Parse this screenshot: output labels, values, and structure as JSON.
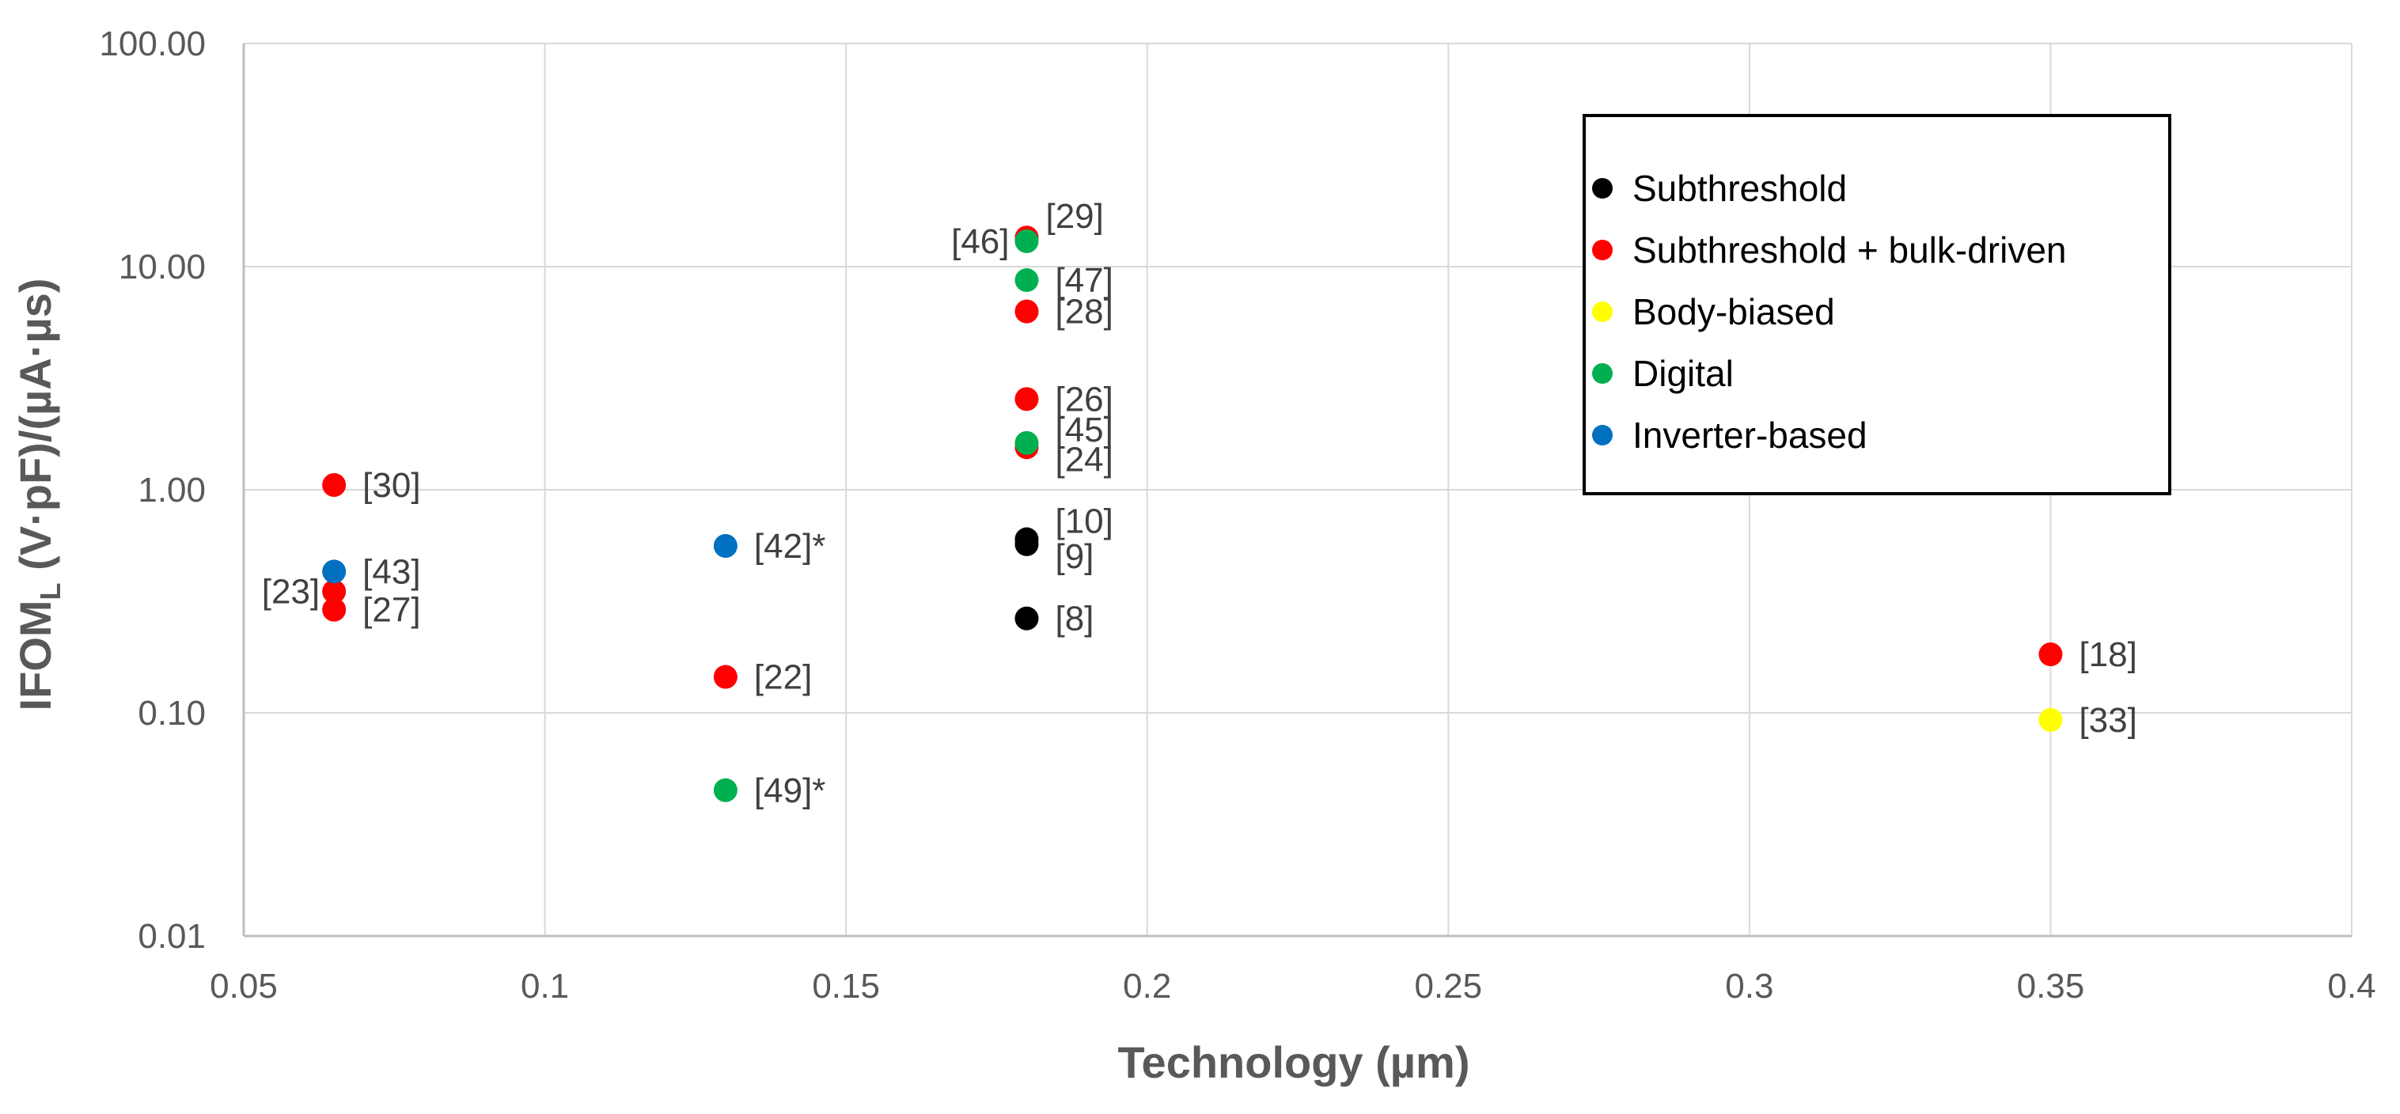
{
  "chart_data": {
    "type": "scatter",
    "xlabel": "Technology (µm)",
    "ylabel_main": "IFOM",
    "ylabel_sub": "L",
    "ylabel_rest": " (V·pF)/(µA·µs)",
    "x_scale": "linear",
    "y_scale": "log",
    "xlim": [
      0.05,
      0.4
    ],
    "ylim": [
      0.01,
      100
    ],
    "x_ticks": [
      0.05,
      0.1,
      0.15,
      0.2,
      0.25,
      0.3,
      0.35,
      0.4
    ],
    "x_tick_labels": [
      "0.05",
      "0.1",
      "0.15",
      "0.2",
      "0.25",
      "0.3",
      "0.35",
      "0.4"
    ],
    "y_ticks": [
      0.01,
      0.1,
      1,
      10,
      100
    ],
    "y_tick_labels": [
      "0.01",
      "0.10",
      "1.00",
      "10.00",
      "100.00"
    ],
    "grid": true,
    "legend_position": "top-right",
    "colors": {
      "Subthreshold": "#000000",
      "Subthreshold + bulk-driven": "#ff0000",
      "Body-biased": "#ffff00",
      "Digital": "#00b050",
      "Inverter-based": "#0070c0",
      "grid": "#d9d9d9",
      "axis": "#bfbfbf"
    },
    "legend": [
      "Subthreshold",
      "Subthreshold + bulk-driven",
      "Body-biased",
      "Digital",
      "Inverter-based"
    ],
    "series": [
      {
        "name": "Subthreshold",
        "points": [
          {
            "x": 0.18,
            "y": 0.6,
            "label": "[10]"
          },
          {
            "x": 0.18,
            "y": 0.57,
            "label": "[9]"
          },
          {
            "x": 0.18,
            "y": 0.265,
            "label": "[8]"
          }
        ]
      },
      {
        "name": "Subthreshold + bulk-driven",
        "points": [
          {
            "x": 0.065,
            "y": 1.05,
            "label": "[30]"
          },
          {
            "x": 0.065,
            "y": 0.35,
            "label": "[23]"
          },
          {
            "x": 0.065,
            "y": 0.29,
            "label": "[27]"
          },
          {
            "x": 0.13,
            "y": 0.145,
            "label": "[22]"
          },
          {
            "x": 0.18,
            "y": 13.5,
            "label": "[29]"
          },
          {
            "x": 0.18,
            "y": 6.3,
            "label": "[28]"
          },
          {
            "x": 0.18,
            "y": 2.55,
            "label": "[26]"
          },
          {
            "x": 0.18,
            "y": 1.55,
            "label": "[24]"
          },
          {
            "x": 0.35,
            "y": 0.183,
            "label": "[18]"
          }
        ]
      },
      {
        "name": "Body-biased",
        "points": [
          {
            "x": 0.35,
            "y": 0.093,
            "label": "[33]"
          }
        ]
      },
      {
        "name": "Digital",
        "points": [
          {
            "x": 0.18,
            "y": 13.0,
            "label": "[46]"
          },
          {
            "x": 0.18,
            "y": 8.7,
            "label": "[47]"
          },
          {
            "x": 0.18,
            "y": 1.62,
            "label": "[45]"
          },
          {
            "x": 0.13,
            "y": 0.045,
            "label": "[49]*"
          }
        ]
      },
      {
        "name": "Inverter-based",
        "points": [
          {
            "x": 0.065,
            "y": 0.43,
            "label": "[43]"
          },
          {
            "x": 0.13,
            "y": 0.56,
            "label": "[42]*"
          }
        ]
      }
    ]
  }
}
